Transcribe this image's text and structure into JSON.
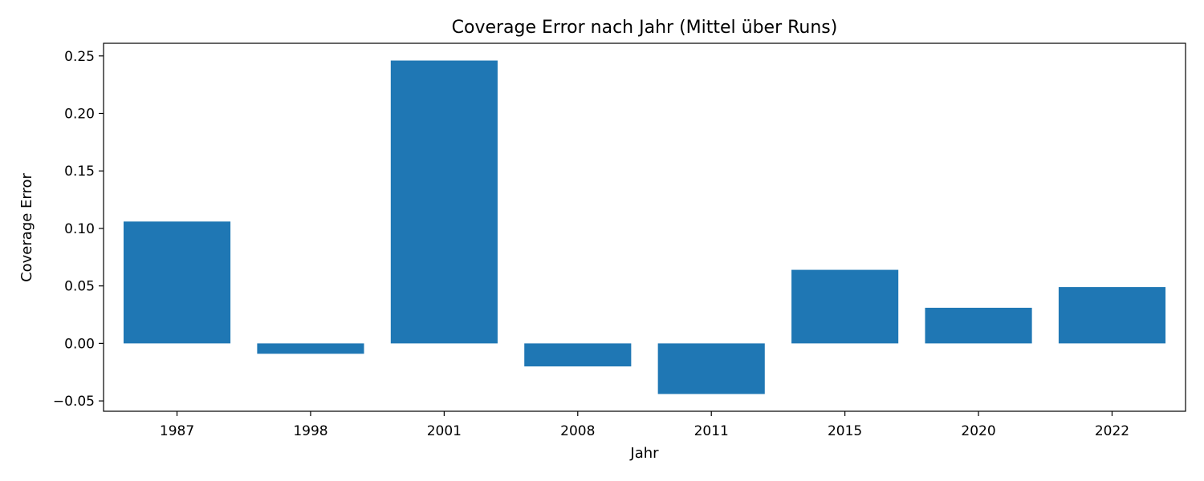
{
  "chart_data": {
    "type": "bar",
    "title": "Coverage Error nach Jahr (Mittel über Runs)",
    "xlabel": "Jahr",
    "ylabel": "Coverage Error",
    "categories": [
      "1987",
      "1998",
      "2001",
      "2008",
      "2011",
      "2015",
      "2020",
      "2022"
    ],
    "values": [
      0.106,
      -0.009,
      0.246,
      -0.02,
      -0.044,
      0.064,
      0.031,
      0.049
    ],
    "ylim": [
      -0.059,
      0.261
    ],
    "yticks": [
      -0.05,
      0.0,
      0.05,
      0.1,
      0.15,
      0.2,
      0.25
    ],
    "ytick_labels": [
      "−0.05",
      "0.00",
      "0.05",
      "0.10",
      "0.15",
      "0.20",
      "0.25"
    ],
    "grid": false,
    "bar_color": "#1f77b4"
  }
}
